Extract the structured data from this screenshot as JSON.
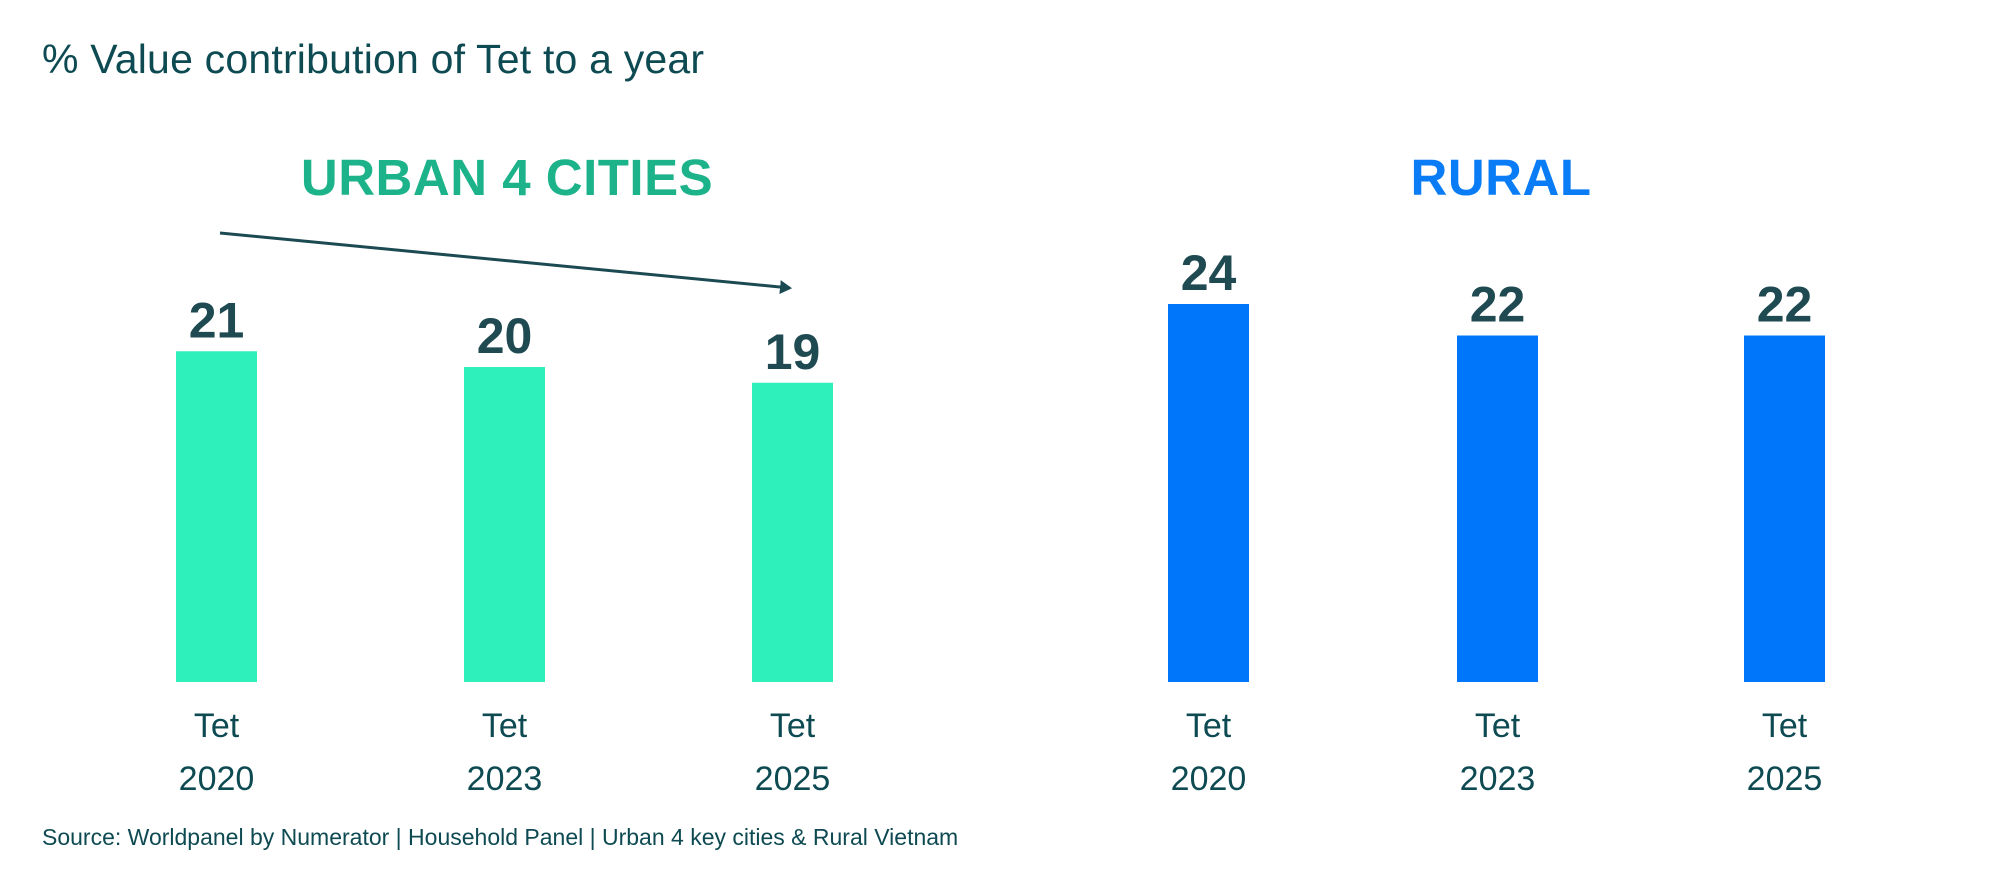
{
  "chart_data": {
    "type": "bar",
    "title": "% Value contribution of Tet to a year",
    "xlabel": "",
    "ylabel": "",
    "ylim": [
      0,
      24
    ],
    "grid": false,
    "legend": "none",
    "panels": [
      {
        "name": "URBAN 4 CITIES",
        "color": "#2ef0bb",
        "title_color": "#1db38a",
        "categories": [
          [
            "Tet",
            "2020"
          ],
          [
            "Tet",
            "2023"
          ],
          [
            "Tet",
            "2025"
          ]
        ],
        "values": [
          21,
          20,
          19
        ],
        "annotation": "downward-trend-arrow"
      },
      {
        "name": "RURAL",
        "color": "#0077fa",
        "title_color": "#0a7cf5",
        "categories": [
          [
            "Tet",
            "2020"
          ],
          [
            "Tet",
            "2023"
          ],
          [
            "Tet",
            "2025"
          ]
        ],
        "values": [
          24,
          22,
          22
        ]
      }
    ],
    "source": "Source: Worldpanel by Numerator | Household Panel | Urban 4 key cities & Rural Vietnam"
  },
  "colors": {
    "text": "#0e4a52",
    "value_label": "#1f4a52",
    "arrow": "#1b4a52"
  }
}
